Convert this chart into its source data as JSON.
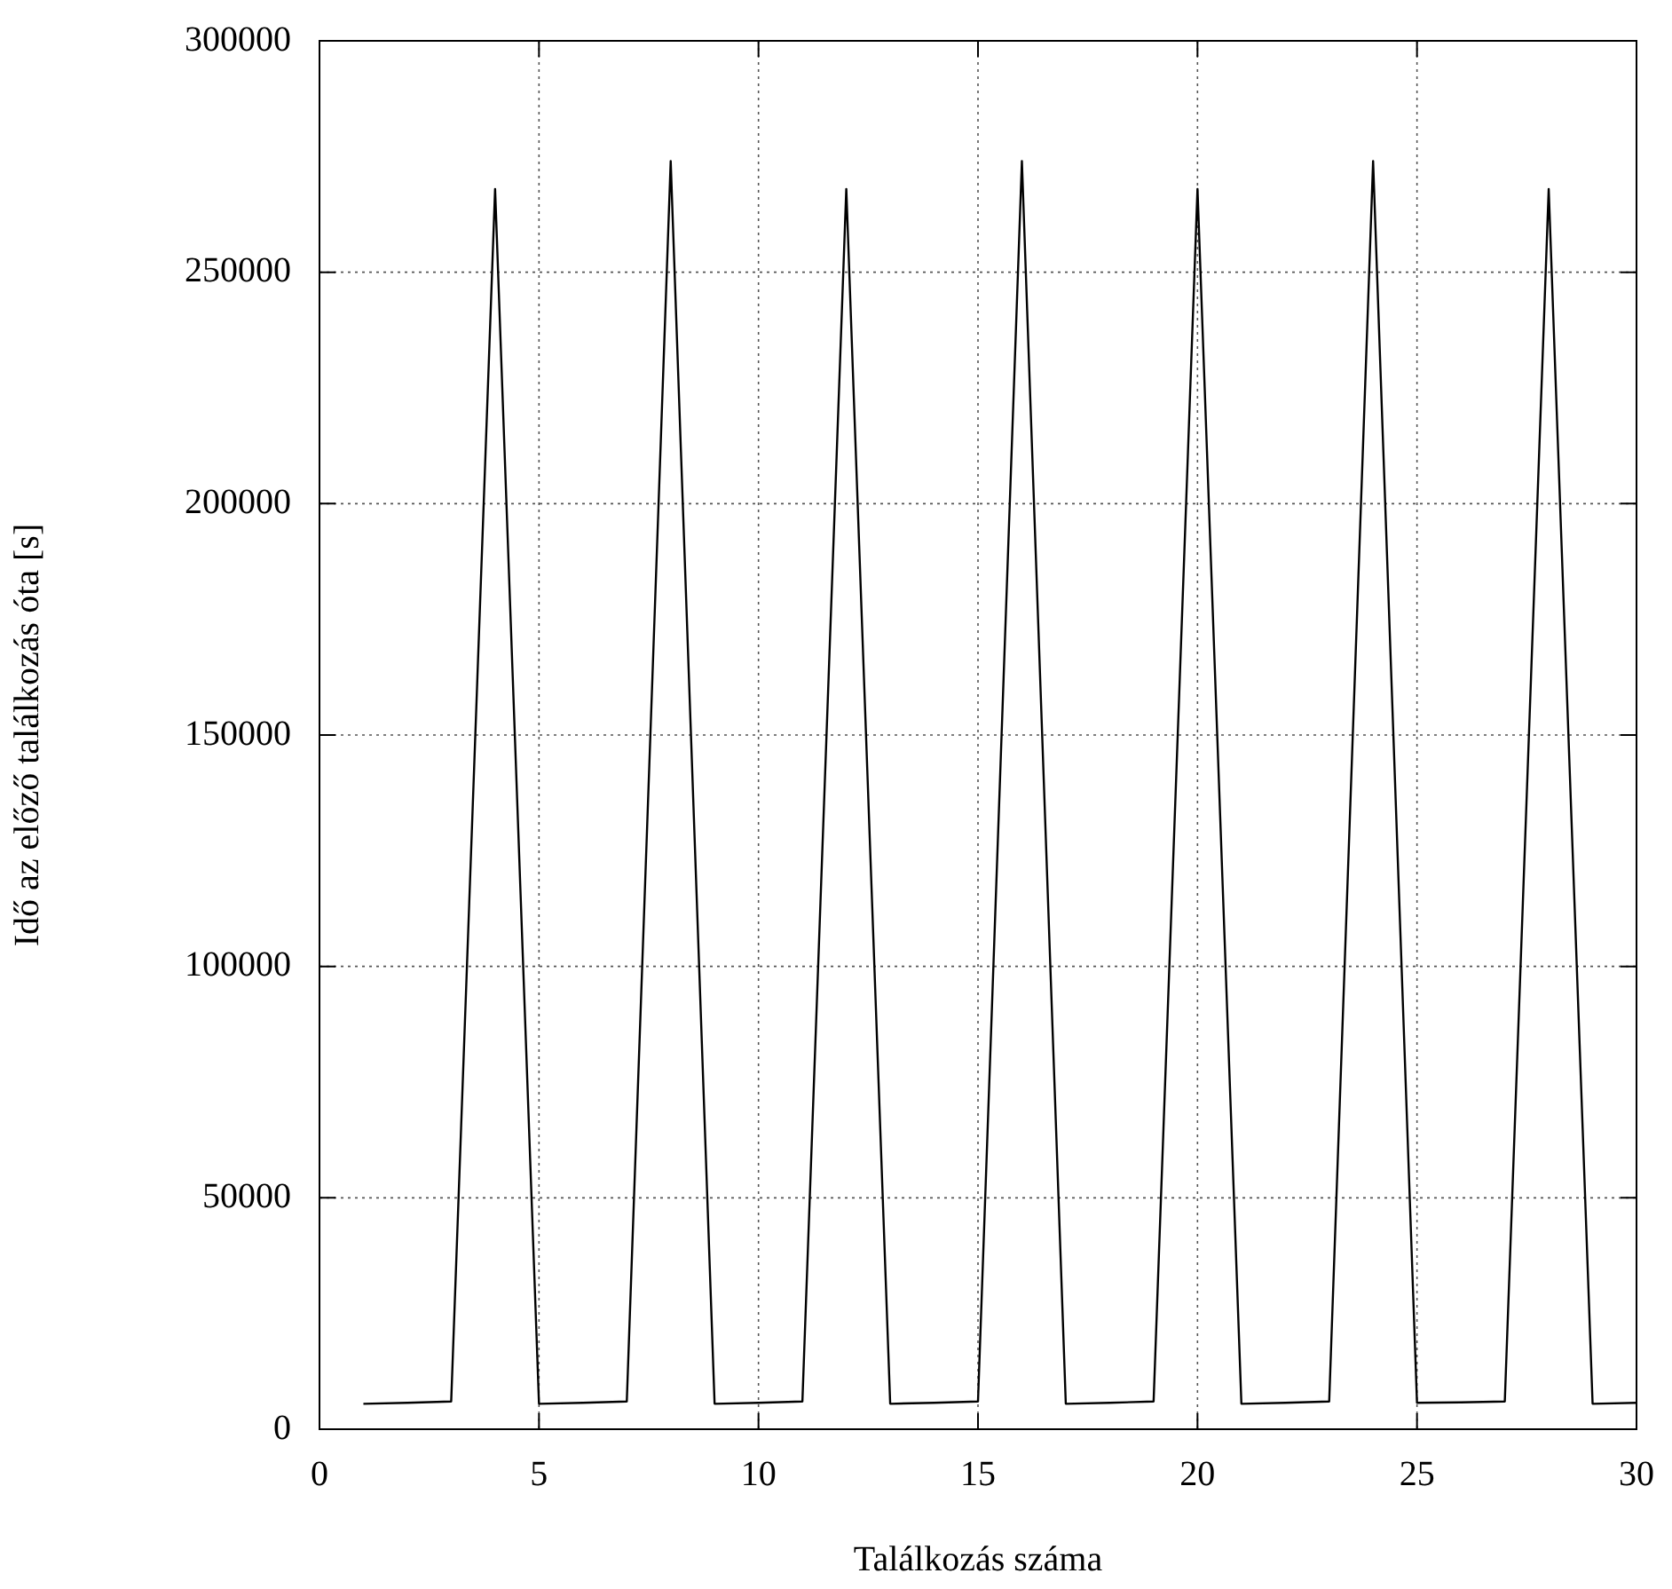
{
  "chart_data": {
    "type": "line",
    "xlabel": "Találkozás száma",
    "ylabel": "Idő az előző találkozás óta [s]",
    "x": [
      1,
      2,
      3,
      4,
      5,
      6,
      7,
      8,
      9,
      10,
      11,
      12,
      13,
      14,
      15,
      16,
      17,
      18,
      19,
      20,
      21,
      22,
      23,
      24,
      25,
      26,
      27,
      28,
      29,
      30
    ],
    "series": [
      {
        "color": "#000000",
        "values": [
          5500,
          5700,
          6000,
          268000,
          5500,
          5700,
          6000,
          274000,
          5500,
          5700,
          6000,
          268000,
          5500,
          5700,
          6000,
          274000,
          5500,
          5700,
          6000,
          268000,
          5500,
          5700,
          6000,
          274000,
          5700,
          5800,
          6000,
          268000,
          5500,
          5700
        ]
      }
    ],
    "xlim": [
      0,
      30
    ],
    "xticks": [
      0,
      5,
      10,
      15,
      20,
      25,
      30
    ],
    "ylim": [
      0,
      300000
    ],
    "yticks": [
      0,
      50000,
      100000,
      150000,
      200000,
      250000,
      300000
    ],
    "grid": true,
    "legend": false,
    "marker": "none",
    "line_style": "solid"
  }
}
